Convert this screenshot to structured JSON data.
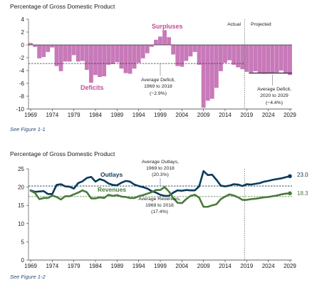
{
  "chart_data": [
    {
      "type": "bar",
      "ylabel": "Percentage of Gross Domestic Product",
      "ylim": [
        -10,
        4
      ],
      "yticks": [
        4,
        2,
        0,
        -2,
        -4,
        -6,
        -8,
        -10
      ],
      "xtick_labels": [
        "1969",
        "1974",
        "1979",
        "1984",
        "1989",
        "1994",
        "1999",
        "2004",
        "2009",
        "2014",
        "2019",
        "2024",
        "2029"
      ],
      "years": [
        1969,
        1970,
        1971,
        1972,
        1973,
        1974,
        1975,
        1976,
        1977,
        1978,
        1979,
        1980,
        1981,
        1982,
        1983,
        1984,
        1985,
        1986,
        1987,
        1988,
        1989,
        1990,
        1991,
        1992,
        1993,
        1994,
        1995,
        1996,
        1997,
        1998,
        1999,
        2000,
        2001,
        2002,
        2003,
        2004,
        2005,
        2006,
        2007,
        2008,
        2009,
        2010,
        2011,
        2012,
        2013,
        2014,
        2015,
        2016,
        2017,
        2018,
        2019,
        2020,
        2021,
        2022,
        2023,
        2024,
        2025,
        2026,
        2027,
        2028,
        2029
      ],
      "values": [
        0.3,
        -0.3,
        -2.1,
        -1.9,
        -1.1,
        -0.4,
        -3.3,
        -4.1,
        -2.6,
        -2.6,
        -1.6,
        -2.6,
        -2.5,
        -3.9,
        -5.9,
        -4.7,
        -5.0,
        -4.9,
        -3.1,
        -3.0,
        -2.7,
        -3.7,
        -4.4,
        -4.5,
        -3.7,
        -2.8,
        -2.1,
        -1.3,
        -0.3,
        0.8,
        1.3,
        2.3,
        1.2,
        -1.5,
        -3.3,
        -3.4,
        -2.5,
        -1.8,
        -1.1,
        -3.1,
        -9.8,
        -8.7,
        -8.4,
        -6.7,
        -4.1,
        -2.8,
        -2.4,
        -3.1,
        -3.5,
        -3.8,
        -4.2,
        -4.3,
        -4.1,
        -4.4,
        -4.5,
        -4.4,
        -4.4,
        -4.3,
        -4.0,
        -4.4,
        -4.7
      ],
      "split_year": 2018.5,
      "reference_lines": [
        {
          "name": "average_1969_2018",
          "value": -2.9,
          "from": 1969,
          "to": 2018
        },
        {
          "name": "average_2020_2029",
          "value": -4.4,
          "from": 2020,
          "to": 2029
        }
      ],
      "labels": {
        "surpluses": "Surpluses",
        "deficits": "Deficits",
        "actual": "Actual",
        "projected": "Projected",
        "avg1_l1": "Average Deficit,",
        "avg1_l2": "1969 to 2018",
        "avg1_l3": "(−2.9%)",
        "avg2_l1": "Average Deficit,",
        "avg2_l2": "2020 to 2029",
        "avg2_l3": "(−4.4%)"
      },
      "colors": {
        "bar": "#c879b9",
        "line": "#333333"
      },
      "note": "See Figure 1-1"
    },
    {
      "type": "line",
      "ylabel": "Percentage of Gross Domestic Product",
      "ylim": [
        0,
        25
      ],
      "yticks": [
        25,
        20,
        15,
        10,
        5,
        0
      ],
      "xtick_labels": [
        "1969",
        "1974",
        "1979",
        "1984",
        "1989",
        "1994",
        "1999",
        "2004",
        "2009",
        "2014",
        "2019",
        "2024",
        "2029"
      ],
      "years": [
        1969,
        1970,
        1971,
        1972,
        1973,
        1974,
        1975,
        1976,
        1977,
        1978,
        1979,
        1980,
        1981,
        1982,
        1983,
        1984,
        1985,
        1986,
        1987,
        1988,
        1989,
        1990,
        1991,
        1992,
        1993,
        1994,
        1995,
        1996,
        1997,
        1998,
        1999,
        2000,
        2001,
        2002,
        2003,
        2004,
        2005,
        2006,
        2007,
        2008,
        2009,
        2010,
        2011,
        2012,
        2013,
        2014,
        2015,
        2016,
        2017,
        2018,
        2019,
        2020,
        2021,
        2022,
        2023,
        2024,
        2025,
        2026,
        2027,
        2028,
        2029
      ],
      "series": [
        {
          "name": "Outlays",
          "color": "#0b3a5b",
          "values": [
            19.1,
            18.7,
            18.8,
            18.9,
            18.1,
            18.1,
            20.6,
            20.8,
            20.2,
            20.1,
            19.6,
            21.1,
            21.6,
            22.5,
            22.8,
            21.5,
            22.2,
            21.8,
            21.0,
            20.6,
            20.5,
            21.2,
            21.7,
            21.5,
            20.7,
            20.3,
            20.0,
            19.6,
            18.9,
            18.5,
            17.9,
            17.6,
            17.6,
            18.5,
            19.1,
            19.0,
            19.2,
            19.1,
            19.1,
            20.2,
            24.4,
            23.3,
            23.4,
            22.0,
            20.4,
            20.2,
            20.4,
            20.8,
            20.7,
            20.3,
            20.8,
            20.7,
            20.9,
            21.1,
            21.5,
            21.7,
            22.0,
            22.2,
            22.4,
            22.7,
            23.0
          ]
        },
        {
          "name": "Revenues",
          "color": "#4a7a3a",
          "values": [
            19.0,
            18.4,
            16.7,
            17.0,
            17.0,
            17.7,
            17.3,
            16.6,
            17.5,
            17.5,
            18.0,
            18.5,
            19.1,
            18.6,
            16.9,
            16.9,
            17.2,
            17.0,
            17.9,
            17.6,
            17.8,
            17.4,
            17.3,
            17.0,
            17.0,
            17.5,
            17.8,
            18.2,
            18.6,
            19.2,
            19.2,
            20.0,
            18.8,
            17.0,
            15.7,
            15.6,
            16.7,
            17.6,
            17.9,
            17.1,
            14.6,
            14.6,
            15.0,
            15.3,
            16.7,
            17.4,
            18.0,
            17.7,
            17.2,
            16.5,
            16.5,
            16.7,
            16.8,
            17.0,
            17.2,
            17.3,
            17.5,
            17.7,
            18.0,
            18.2,
            18.3
          ]
        }
      ],
      "split_year": 2018.5,
      "reference_lines": [
        {
          "name": "average_outlays",
          "value": 20.3
        },
        {
          "name": "average_revenues",
          "value": 17.4
        }
      ],
      "labels": {
        "outlays": "Outlays",
        "revenues": "Revenues",
        "outlays_end": "23.0",
        "revenues_end": "18.3",
        "avg_out_l1": "Average Outlays,",
        "avg_out_l2": "1969 to 2018",
        "avg_out_l3": "(20.3%)",
        "avg_rev_l1": "Average Revenues,",
        "avg_rev_l2": "1969 to 2018",
        "avg_rev_l3": "(17.4%)"
      },
      "note": "See Figure 1-2"
    }
  ]
}
